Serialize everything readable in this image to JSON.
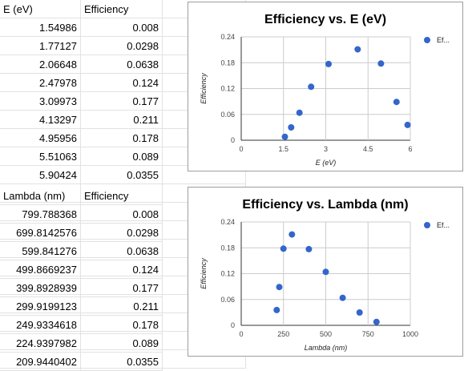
{
  "table1": {
    "headers": [
      "E (eV)",
      "Efficiency"
    ],
    "rows": [
      [
        "1.54986",
        "0.008"
      ],
      [
        "1.77127",
        "0.0298"
      ],
      [
        "2.06648",
        "0.0638"
      ],
      [
        "2.47978",
        "0.124"
      ],
      [
        "3.09973",
        "0.177"
      ],
      [
        "4.13297",
        "0.211"
      ],
      [
        "4.95956",
        "0.178"
      ],
      [
        "5.51063",
        "0.089"
      ],
      [
        "5.90424",
        "0.0355"
      ]
    ]
  },
  "table2": {
    "headers": [
      "Lambda (nm)",
      "Efficiency"
    ],
    "rows": [
      [
        "799.788368",
        "0.008"
      ],
      [
        "699.8142576",
        "0.0298"
      ],
      [
        "599.841276",
        "0.0638"
      ],
      [
        "499.8669237",
        "0.124"
      ],
      [
        "399.8928939",
        "0.177"
      ],
      [
        "299.9199123",
        "0.211"
      ],
      [
        "249.9334618",
        "0.178"
      ],
      [
        "224.9397982",
        "0.089"
      ],
      [
        "209.9440402",
        "0.0355"
      ]
    ]
  },
  "colors": {
    "point": "#3366cc",
    "grid": "#cccccc",
    "cell_border": "#e2e2e2"
  },
  "chart_data": [
    {
      "type": "scatter",
      "title": "Efficiency vs. E (eV)",
      "xlabel": "E (eV)",
      "ylabel": "Efficiency",
      "legend": "Ef...",
      "legend_position": "right",
      "xlim": [
        0,
        6
      ],
      "ylim": [
        0,
        0.24
      ],
      "xticks": [
        "0",
        "1.5",
        "3",
        "4.5",
        "6"
      ],
      "yticks": [
        "0",
        "0.06",
        "0.12",
        "0.18",
        "0.24"
      ],
      "x": [
        1.54986,
        1.77127,
        2.06648,
        2.47978,
        3.09973,
        4.13297,
        4.95956,
        5.51063,
        5.90424
      ],
      "y": [
        0.008,
        0.0298,
        0.0638,
        0.124,
        0.177,
        0.211,
        0.178,
        0.089,
        0.0355
      ]
    },
    {
      "type": "scatter",
      "title": "Efficiency vs. Lambda (nm)",
      "xlabel": "Lambda (nm)",
      "ylabel": "Efficiency",
      "legend": "Ef...",
      "legend_position": "right",
      "xlim": [
        0,
        1000
      ],
      "ylim": [
        0,
        0.24
      ],
      "xticks": [
        "0",
        "250",
        "500",
        "750",
        "1000"
      ],
      "yticks": [
        "0",
        "0.06",
        "0.12",
        "0.18",
        "0.24"
      ],
      "x": [
        799.788368,
        699.8142576,
        599.841276,
        499.8669237,
        399.8928939,
        299.9199123,
        249.9334618,
        224.9397982,
        209.9440402
      ],
      "y": [
        0.008,
        0.0298,
        0.0638,
        0.124,
        0.177,
        0.211,
        0.178,
        0.089,
        0.0355
      ]
    }
  ]
}
